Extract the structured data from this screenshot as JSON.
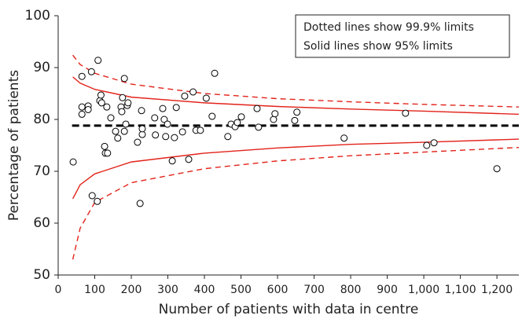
{
  "chart_data": {
    "type": "scatter",
    "x_label": "Number of patients with data in centre",
    "y_label": "Percentage of patients",
    "notes": [
      "Dotted lines show 99.9% limits",
      "Solid lines show 95% limits"
    ],
    "x": [
      41,
      65,
      65,
      65,
      82,
      82,
      91,
      93,
      109,
      107,
      114,
      117,
      119,
      127,
      129,
      135,
      133,
      144,
      157,
      163,
      172,
      176,
      181,
      174,
      181,
      185,
      189,
      191,
      217,
      224,
      228,
      230,
      230,
      264,
      266,
      286,
      290,
      294,
      299,
      312,
      318,
      323,
      340,
      346,
      357,
      369,
      377,
      389,
      405,
      421,
      428,
      464,
      473,
      484,
      490,
      501,
      544,
      548,
      589,
      593,
      647,
      653,
      782,
      950,
      1008,
      1028,
      1200
    ],
    "values": [
      71.8,
      88.3,
      82.4,
      81.0,
      82.6,
      81.9,
      89.2,
      65.3,
      91.4,
      64.2,
      83.6,
      84.7,
      83.2,
      74.8,
      73.5,
      73.5,
      82.4,
      80.3,
      77.7,
      76.4,
      82.4,
      84.2,
      87.9,
      81.5,
      77.7,
      79.1,
      82.7,
      83.2,
      75.6,
      63.8,
      81.7,
      77.1,
      78.2,
      80.3,
      77.0,
      82.1,
      80.0,
      76.7,
      79.1,
      72.0,
      76.5,
      82.3,
      77.6,
      84.5,
      72.3,
      85.3,
      77.9,
      77.9,
      84.1,
      80.6,
      88.9,
      76.7,
      79.1,
      78.6,
      79.4,
      80.5,
      82.1,
      78.5,
      80.0,
      81.1,
      79.8,
      81.4,
      76.4,
      81.2,
      75.0,
      75.5,
      70.5
    ],
    "lines": [
      {
        "x": [
          40,
          60,
          100,
          200,
          400,
          600,
          800,
          1000,
          1260
        ],
        "values": [
          88.2,
          87.0,
          85.8,
          84.3,
          83.2,
          82.5,
          82.0,
          81.6,
          81.0
        ],
        "color": "#e2231a",
        "style": "solid"
      },
      {
        "x": [
          40,
          60,
          100,
          200,
          400,
          600,
          800,
          1000,
          1260
        ],
        "values": [
          64.7,
          67.4,
          69.5,
          71.8,
          73.5,
          74.5,
          75.2,
          75.6,
          76.2
        ],
        "color": "#e2231a",
        "style": "solid"
      },
      {
        "x": [
          40,
          60,
          100,
          200,
          400,
          600,
          800,
          1000,
          1260
        ],
        "values": [
          92.4,
          90.6,
          88.9,
          86.8,
          85.0,
          84.0,
          83.4,
          82.9,
          82.4
        ],
        "color": "#e2231a",
        "style": "dashed"
      },
      {
        "x": [
          40,
          60,
          100,
          200,
          400,
          600,
          800,
          1000,
          1260
        ],
        "values": [
          53.0,
          59.0,
          64.0,
          67.8,
          70.5,
          72.0,
          73.0,
          73.7,
          74.6
        ],
        "color": "#e2231a",
        "style": "dashed"
      },
      {
        "x": [
          38,
          1260
        ],
        "values": [
          78.8,
          78.8
        ],
        "color": "#000000",
        "style": "bold-dashed"
      }
    ],
    "xlim": [
      0,
      1260
    ],
    "ylim": [
      50,
      100
    ],
    "xticks": [
      0,
      100,
      200,
      300,
      400,
      500,
      600,
      700,
      800,
      900,
      {
        "value": 1000,
        "label": "1,000"
      },
      {
        "value": 1100,
        "label": "1,100"
      },
      {
        "value": 1200,
        "label": "1,200"
      }
    ],
    "yticks": [
      50,
      60,
      70,
      80,
      90,
      100
    ],
    "point_color": "#000000"
  }
}
